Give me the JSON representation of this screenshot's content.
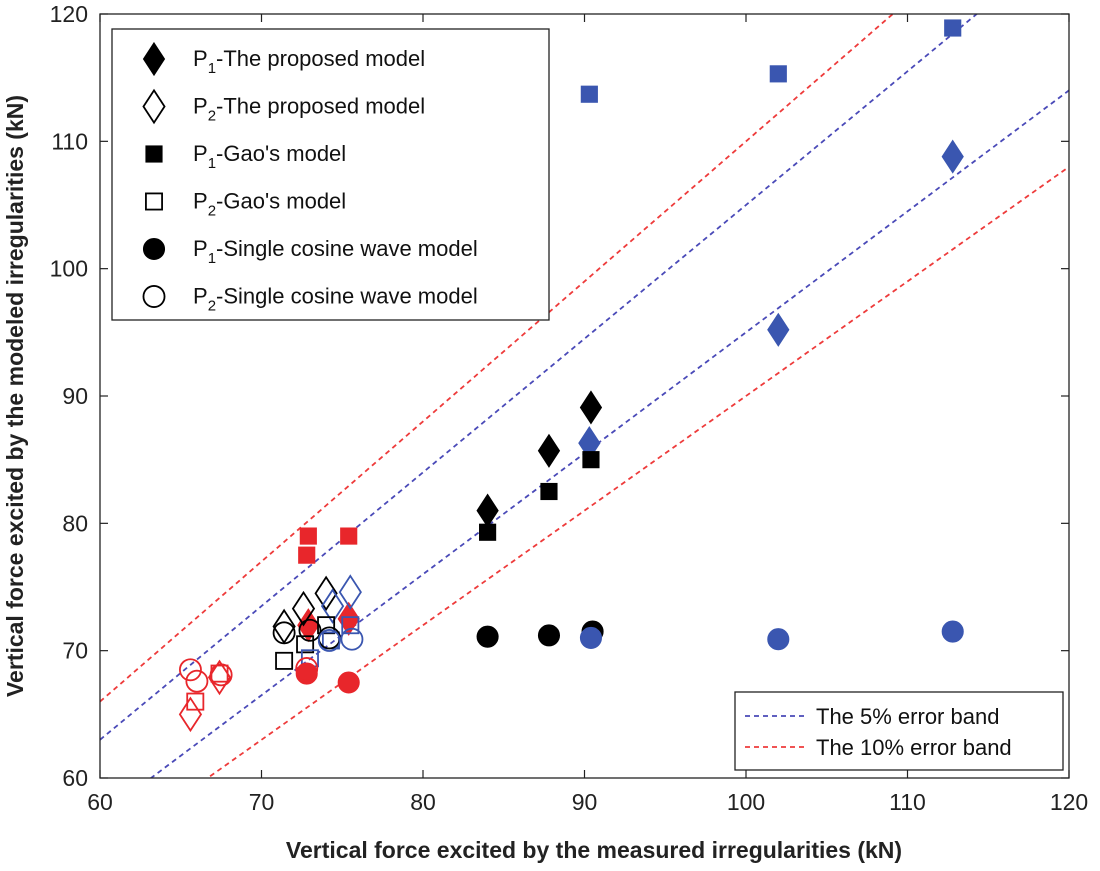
{
  "chart_data": {
    "type": "scatter",
    "xlabel": "Vertical force excited by the measured irregularities (kN)",
    "ylabel": "Vertical force excited by the modeled irregularities (kN)",
    "xlim": [
      60,
      120
    ],
    "ylim": [
      60,
      120
    ],
    "xticks": [
      "60",
      "70",
      "80",
      "90",
      "100",
      "110",
      "120"
    ],
    "yticks": [
      "60",
      "70",
      "80",
      "90",
      "100",
      "110",
      "120"
    ],
    "grid": false,
    "legend_position": "top-left",
    "colors": {
      "black": "#000000",
      "blue": "#3a56b0",
      "red": "#e8262b",
      "band5": "#4a4ab8",
      "band10": "#ee3b3b"
    },
    "legend": [
      {
        "sub": "1",
        "text": "-The proposed model",
        "marker": "diamond",
        "fill": true
      },
      {
        "sub": "2",
        "text": "-The proposed model",
        "marker": "diamond",
        "fill": false
      },
      {
        "sub": "1",
        "text": "-Gao's model",
        "marker": "square",
        "fill": true
      },
      {
        "sub": "2",
        "text": "-Gao's model",
        "marker": "square",
        "fill": false
      },
      {
        "sub": "1",
        "text": "-Single cosine wave model",
        "marker": "circle",
        "fill": true
      },
      {
        "sub": "2",
        "text": "-Single cosine wave model",
        "marker": "circle",
        "fill": false
      }
    ],
    "band_legend": [
      {
        "label": "The 5% error band",
        "color": "band5"
      },
      {
        "label": "The 10% error band",
        "color": "band10"
      }
    ],
    "error_bands": [
      {
        "name": "5% upper",
        "slope": 1.05,
        "color": "band5"
      },
      {
        "name": "5% lower",
        "slope": 0.95,
        "color": "band5"
      },
      {
        "name": "10% upper",
        "slope": 1.1,
        "color": "band10"
      },
      {
        "name": "10% lower",
        "slope": 0.9,
        "color": "band10"
      }
    ],
    "series": [
      {
        "name": "P1-The proposed model",
        "marker": "diamond",
        "fill": true,
        "points": [
          {
            "x": 84.0,
            "y": 81.0,
            "c": "black"
          },
          {
            "x": 87.8,
            "y": 85.7,
            "c": "black"
          },
          {
            "x": 90.4,
            "y": 89.1,
            "c": "black"
          },
          {
            "x": 90.3,
            "y": 86.3,
            "c": "blue"
          },
          {
            "x": 102.0,
            "y": 95.2,
            "c": "blue"
          },
          {
            "x": 112.8,
            "y": 108.8,
            "c": "blue"
          },
          {
            "x": 72.9,
            "y": 72.0,
            "c": "red"
          },
          {
            "x": 75.4,
            "y": 72.5,
            "c": "red"
          }
        ]
      },
      {
        "name": "P2-The proposed model",
        "marker": "diamond",
        "fill": false,
        "points": [
          {
            "x": 71.4,
            "y": 71.9,
            "c": "black"
          },
          {
            "x": 72.6,
            "y": 73.3,
            "c": "black"
          },
          {
            "x": 74.0,
            "y": 74.5,
            "c": "black"
          },
          {
            "x": 74.4,
            "y": 73.5,
            "c": "blue"
          },
          {
            "x": 75.5,
            "y": 74.6,
            "c": "blue"
          },
          {
            "x": 65.6,
            "y": 65.0,
            "c": "red"
          },
          {
            "x": 67.4,
            "y": 67.9,
            "c": "red"
          }
        ]
      },
      {
        "name": "P1-Gao's model",
        "marker": "square",
        "fill": true,
        "points": [
          {
            "x": 84.0,
            "y": 79.3,
            "c": "black"
          },
          {
            "x": 87.8,
            "y": 82.5,
            "c": "black"
          },
          {
            "x": 90.4,
            "y": 85.0,
            "c": "black"
          },
          {
            "x": 90.3,
            "y": 113.7,
            "c": "blue"
          },
          {
            "x": 102.0,
            "y": 115.3,
            "c": "blue"
          },
          {
            "x": 112.8,
            "y": 118.9,
            "c": "blue"
          },
          {
            "x": 72.9,
            "y": 79.0,
            "c": "red"
          },
          {
            "x": 72.8,
            "y": 77.5,
            "c": "red"
          },
          {
            "x": 75.4,
            "y": 79.0,
            "c": "red"
          }
        ]
      },
      {
        "name": "P2-Gao's model",
        "marker": "square",
        "fill": false,
        "points": [
          {
            "x": 71.4,
            "y": 69.2,
            "c": "black"
          },
          {
            "x": 72.7,
            "y": 70.5,
            "c": "black"
          },
          {
            "x": 74.0,
            "y": 72.0,
            "c": "black"
          },
          {
            "x": 73.0,
            "y": 69.4,
            "c": "blue"
          },
          {
            "x": 74.3,
            "y": 70.8,
            "c": "blue"
          },
          {
            "x": 75.5,
            "y": 72.0,
            "c": "blue"
          },
          {
            "x": 65.9,
            "y": 66.0,
            "c": "red"
          },
          {
            "x": 67.4,
            "y": 68.2,
            "c": "red"
          }
        ]
      },
      {
        "name": "P1-Single cosine wave model",
        "marker": "circle",
        "fill": true,
        "points": [
          {
            "x": 84.0,
            "y": 71.1,
            "c": "black"
          },
          {
            "x": 87.8,
            "y": 71.2,
            "c": "black"
          },
          {
            "x": 90.5,
            "y": 71.5,
            "c": "black"
          },
          {
            "x": 90.4,
            "y": 71.0,
            "c": "blue"
          },
          {
            "x": 102.0,
            "y": 70.9,
            "c": "blue"
          },
          {
            "x": 112.8,
            "y": 71.5,
            "c": "blue"
          },
          {
            "x": 72.8,
            "y": 68.2,
            "c": "red"
          },
          {
            "x": 75.4,
            "y": 67.5,
            "c": "red"
          }
        ]
      },
      {
        "name": "P2-Single cosine wave model",
        "marker": "circle",
        "fill": false,
        "points": [
          {
            "x": 71.4,
            "y": 71.4,
            "c": "black"
          },
          {
            "x": 73.0,
            "y": 71.6,
            "c": "black"
          },
          {
            "x": 74.2,
            "y": 71.0,
            "c": "black"
          },
          {
            "x": 74.2,
            "y": 70.8,
            "c": "blue"
          },
          {
            "x": 75.6,
            "y": 70.9,
            "c": "blue"
          },
          {
            "x": 65.6,
            "y": 68.5,
            "c": "red"
          },
          {
            "x": 66.0,
            "y": 67.6,
            "c": "red"
          },
          {
            "x": 67.5,
            "y": 68.1,
            "c": "red"
          },
          {
            "x": 72.8,
            "y": 68.6,
            "c": "red"
          }
        ]
      }
    ]
  }
}
